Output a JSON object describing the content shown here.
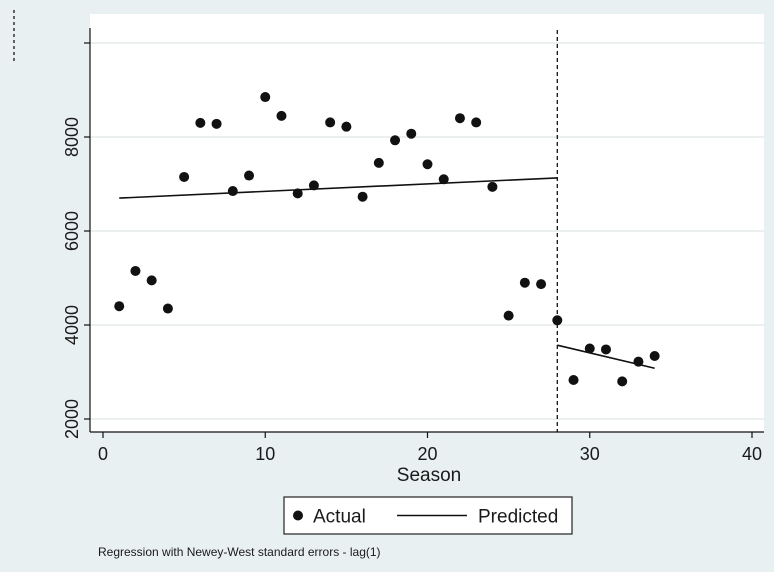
{
  "chart_data": {
    "type": "scatter",
    "xlabel": "Season",
    "ylabel": "",
    "xlim": [
      0,
      40
    ],
    "ylim": [
      2000,
      9200
    ],
    "xticks": [
      "0",
      "10",
      "20",
      "30",
      "40"
    ],
    "yticks": [
      "2000",
      "4000",
      "6000",
      "8000"
    ],
    "grid": "horizontal",
    "break_line_x": 28,
    "legend_position": "bottom",
    "series": [
      {
        "name": "Actual",
        "marker": "dot",
        "points": [
          [
            1,
            4400
          ],
          [
            2,
            5150
          ],
          [
            3,
            4950
          ],
          [
            4,
            4350
          ],
          [
            5,
            7150
          ],
          [
            6,
            8300
          ],
          [
            7,
            8280
          ],
          [
            8,
            6850
          ],
          [
            9,
            7180
          ],
          [
            10,
            8850
          ],
          [
            11,
            8450
          ],
          [
            12,
            6800
          ],
          [
            13,
            6970
          ],
          [
            14,
            8310
          ],
          [
            15,
            8220
          ],
          [
            16,
            6730
          ],
          [
            17,
            7450
          ],
          [
            18,
            7930
          ],
          [
            19,
            8070
          ],
          [
            20,
            7420
          ],
          [
            21,
            7100
          ],
          [
            22,
            8400
          ],
          [
            23,
            8310
          ],
          [
            24,
            6940
          ],
          [
            25,
            4200
          ],
          [
            26,
            4900
          ],
          [
            27,
            4870
          ],
          [
            28,
            4100
          ],
          [
            29,
            2830
          ],
          [
            30,
            3500
          ],
          [
            31,
            3480
          ],
          [
            32,
            2800
          ],
          [
            33,
            3220
          ],
          [
            34,
            3340
          ]
        ]
      },
      {
        "name": "Predicted",
        "marker": "line",
        "segments": [
          [
            [
              1,
              6700
            ],
            [
              28,
              7130
            ]
          ],
          [
            [
              28,
              3570
            ],
            [
              34,
              3080
            ]
          ]
        ]
      }
    ],
    "note": "Regression with Newey-West standard errors - lag(1)"
  }
}
